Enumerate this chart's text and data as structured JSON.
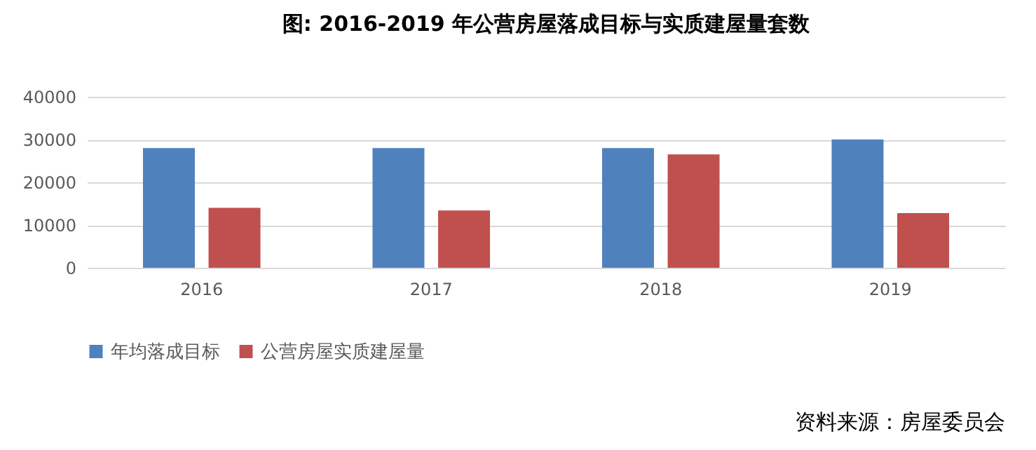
{
  "chart_data": {
    "type": "bar",
    "title": "图: 2016-2019 年公营房屋落成目标与实质建屋量套数",
    "categories": [
      "2016",
      "2017",
      "2018",
      "2019"
    ],
    "series": [
      {
        "name": "年均落成目标",
        "color": "#4f81bd",
        "values": [
          28000,
          28000,
          28000,
          30000
        ]
      },
      {
        "name": "公营房屋实质建屋量",
        "color": "#c0504d",
        "values": [
          14000,
          13400,
          26500,
          12800
        ]
      }
    ],
    "ylim": [
      0,
      40000
    ],
    "yticks": [
      0,
      10000,
      20000,
      30000,
      40000
    ],
    "grid": "y",
    "legend": "bottom",
    "annotations": [
      "资料来源：房屋委员会"
    ]
  }
}
